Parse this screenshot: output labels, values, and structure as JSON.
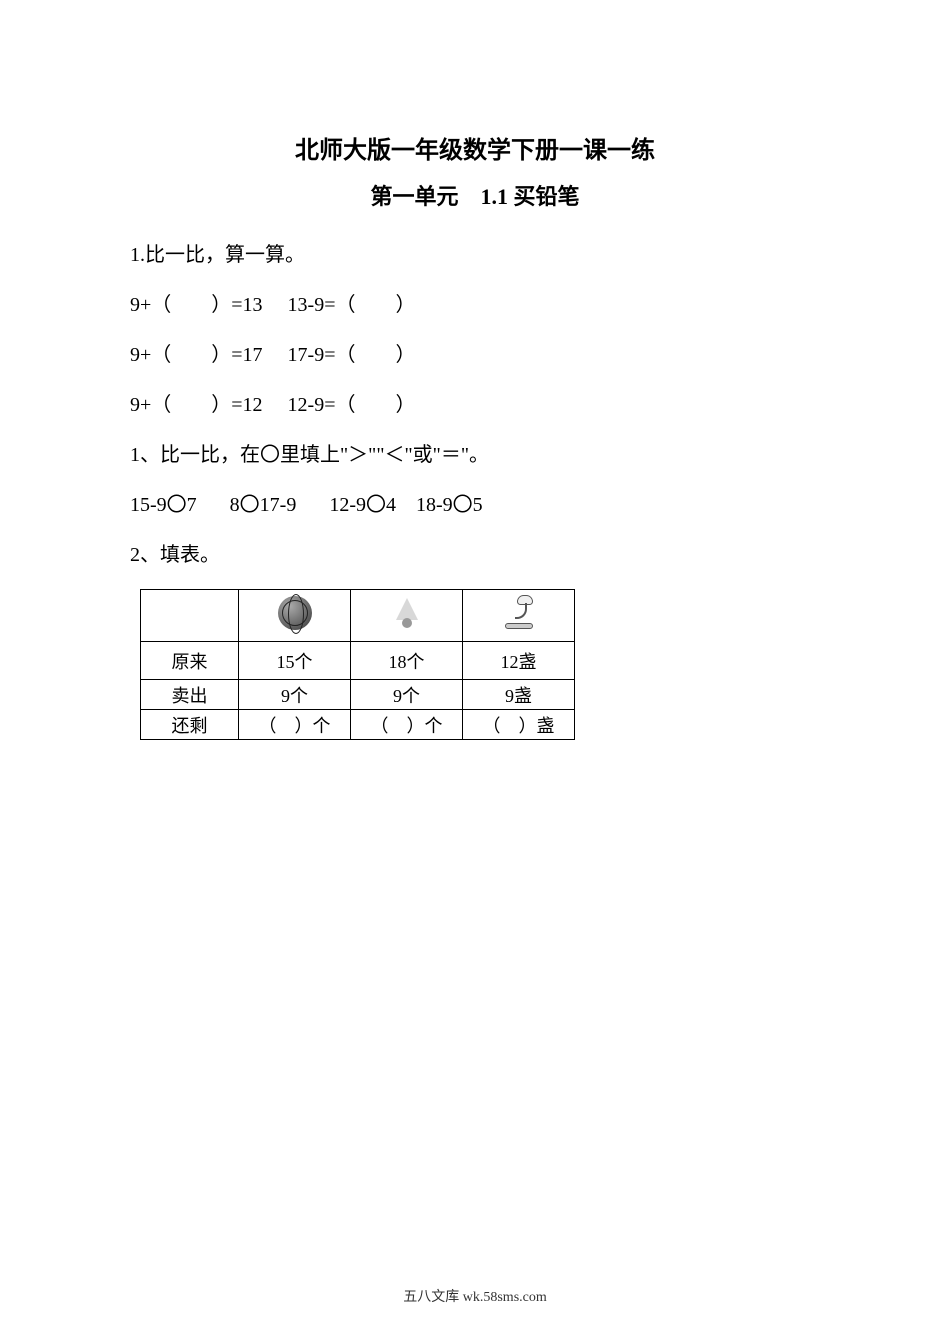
{
  "title": "北师大版一年级数学下册一课一练",
  "subtitle": "第一单元　1.1 买铅笔",
  "q1": {
    "heading": "1.比一比，算一算。",
    "lines": [
      "9+（　　）=13　 13-9=（　　）",
      "9+（　　）=17　 17-9=（　　）",
      "9+（　　）=12　 12-9=（　　）"
    ]
  },
  "q2": {
    "heading": "1、比一比，在〇里填上\"＞\"\"＜\"或\"＝\"。",
    "line": "15-9〇7　 8〇17-9　 12-9〇4　18-9〇5"
  },
  "q3": {
    "heading": "2、填表。",
    "table": {
      "col_widths": [
        "98px",
        "112px",
        "112px",
        "112px"
      ],
      "icon_names": [
        "basketball-icon",
        "shuttlecock-icon",
        "lamp-icon"
      ],
      "rows": [
        {
          "label": "原来",
          "cells": [
            "15个",
            "18个",
            "12盏"
          ]
        },
        {
          "label": "卖出",
          "cells": [
            "9个",
            "9个",
            "9盏"
          ]
        },
        {
          "label": "还剩",
          "cells": [
            "（　）个",
            "（　）个",
            "（　）盏"
          ]
        }
      ]
    }
  },
  "footer": "五八文库 wk.58sms.com",
  "colors": {
    "text": "#000000",
    "background": "#ffffff",
    "border": "#000000"
  }
}
